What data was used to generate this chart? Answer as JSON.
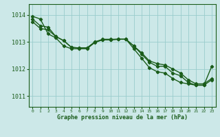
{
  "title": "Graphe pression niveau de la mer (hPa)",
  "bg_color": "#cce8e8",
  "grid_color": "#99cccc",
  "line_color": "#1a5c1a",
  "xlim": [
    -0.5,
    23.5
  ],
  "ylim": [
    1010.6,
    1014.4
  ],
  "yticks": [
    1011,
    1012,
    1013,
    1014
  ],
  "xticks": [
    0,
    1,
    2,
    3,
    4,
    5,
    6,
    7,
    8,
    9,
    10,
    11,
    12,
    13,
    14,
    15,
    16,
    17,
    18,
    19,
    20,
    21,
    22,
    23
  ],
  "series1": [
    1013.85,
    1013.6,
    1013.55,
    1013.2,
    1013.05,
    1012.8,
    1012.78,
    1012.78,
    1013.0,
    1013.1,
    1013.1,
    1013.1,
    1013.1,
    1012.85,
    1012.55,
    1012.25,
    1012.1,
    1012.1,
    1011.85,
    1011.75,
    1011.5,
    1011.4,
    1011.4,
    1011.6
  ],
  "series2": [
    1013.95,
    1013.85,
    1013.3,
    1013.15,
    1012.85,
    1012.75,
    1012.75,
    1012.75,
    1012.98,
    1013.08,
    1013.08,
    1013.1,
    1013.1,
    1012.75,
    1012.4,
    1012.05,
    1011.9,
    1011.85,
    1011.65,
    1011.5,
    1011.45,
    1011.4,
    1011.4,
    1012.1
  ],
  "series3": [
    1013.75,
    1013.5,
    1013.45,
    1013.2,
    1013.05,
    1012.8,
    1012.78,
    1012.78,
    1013.0,
    1013.08,
    1013.08,
    1013.1,
    1013.1,
    1012.85,
    1012.6,
    1012.3,
    1012.2,
    1012.15,
    1012.0,
    1011.85,
    1011.6,
    1011.45,
    1011.45,
    1011.65
  ]
}
